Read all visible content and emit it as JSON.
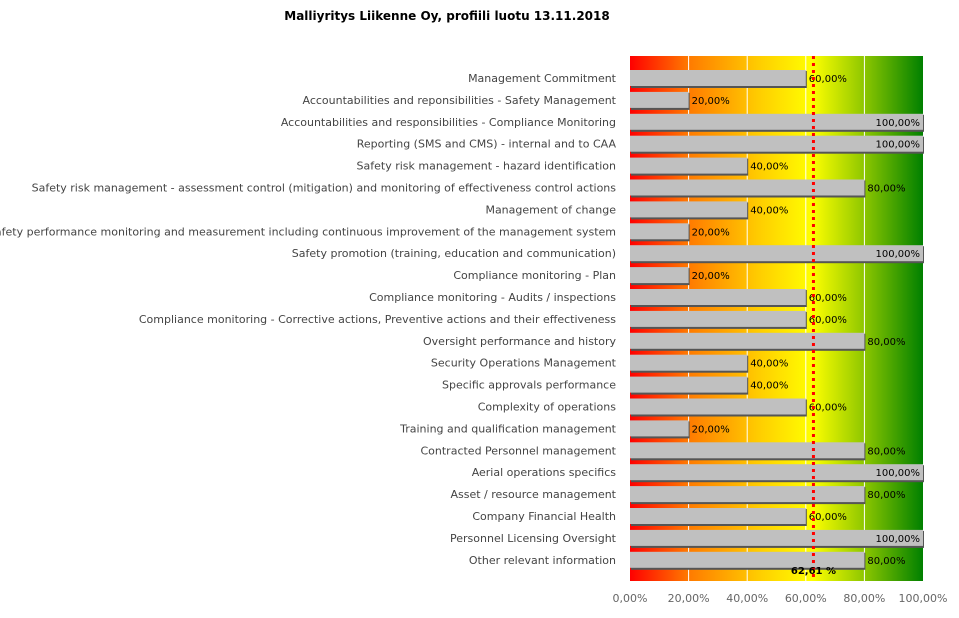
{
  "chart_data": {
    "type": "bar",
    "orientation": "horizontal",
    "title": "Malliyritys Liikenne Oy, profiili luotu 13.11.2018",
    "categories": [
      "Management Commitment",
      "Accountabilities and reponsibilities - Safety Management",
      "Accountabilities and responsibilities - Compliance Monitoring",
      "Reporting (SMS and CMS) - internal and to CAA",
      "Safety risk management - hazard identification",
      "Safety risk management - assessment control (mitigation) and monitoring of effectiveness control actions",
      "Management of change",
      "Safety performance monitoring and measurement including continuous improvement of the management system",
      "Safety promotion (training, education and communication)",
      "Compliance monitoring - Plan",
      "Compliance monitoring - Audits / inspections",
      "Compliance monitoring - Corrective actions, Preventive actions and their effectiveness",
      "Oversight performance and history",
      "Security Operations Management",
      "Specific approvals performance",
      "Complexity of operations",
      "Training and qualification management",
      "Contracted Personnel management",
      "Aerial operations specifics",
      "Asset / resource management",
      "Company Financial Health",
      "Personnel Licensing Oversight",
      "Other relevant information"
    ],
    "values": [
      60,
      20,
      100,
      100,
      40,
      80,
      40,
      20,
      100,
      20,
      60,
      60,
      80,
      40,
      40,
      60,
      20,
      80,
      100,
      80,
      60,
      100,
      80
    ],
    "value_labels": [
      "60,00%",
      "20,00%",
      "100,00%",
      "100,00%",
      "40,00%",
      "80,00%",
      "40,00%",
      "20,00%",
      "100,00%",
      "20,00%",
      "60,00%",
      "60,00%",
      "80,00%",
      "40,00%",
      "40,00%",
      "60,00%",
      "20,00%",
      "80,00%",
      "100,00%",
      "80,00%",
      "60,00%",
      "100,00%",
      "80,00%"
    ],
    "xlim": [
      0,
      100
    ],
    "xticks": [
      "0,00%",
      "20,00%",
      "40,00%",
      "60,00%",
      "80,00%",
      "100,00%"
    ],
    "grid": true,
    "average": {
      "value": 62.61,
      "label": "62,61 %",
      "color": "#ff0000"
    },
    "bar_color": "#c0c0c0",
    "background_gradient": [
      "#ff0000",
      "#ff7a00",
      "#ffd000",
      "#ffff00",
      "#9acd00",
      "#008000"
    ]
  }
}
